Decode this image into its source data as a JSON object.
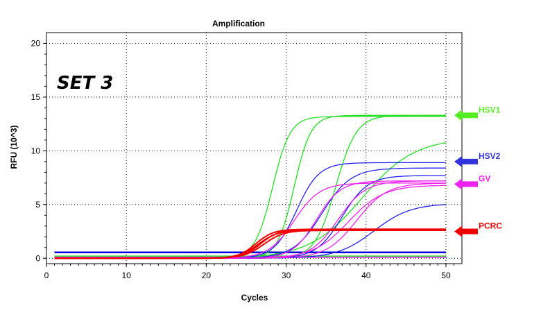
{
  "chart_data": {
    "type": "line",
    "title": "Amplification",
    "xlabel": "Cycles",
    "ylabel": "RFU (10^3)",
    "annotation": "SET 3",
    "xlim": [
      0,
      52
    ],
    "ylim": [
      -0.5,
      21
    ],
    "xticks": [
      0,
      10,
      20,
      30,
      40,
      50
    ],
    "yticks": [
      0,
      5,
      10,
      15,
      20
    ],
    "grid": true,
    "legend_position": "right",
    "groups": [
      {
        "name": "HSV1",
        "color": "#22dd22",
        "curves": [
          {
            "plateau": 13.2,
            "midpoint": 28.3,
            "slope": 1.1
          },
          {
            "plateau": 13.3,
            "midpoint": 31.0,
            "slope": 1.05
          },
          {
            "plateau": 13.3,
            "midpoint": 36.2,
            "slope": 1.3
          },
          {
            "plateau": 11.2,
            "midpoint": 39.5,
            "slope": 3.3
          }
        ]
      },
      {
        "name": "HSV2",
        "color": "#2222ee",
        "curves": [
          {
            "plateau": 8.9,
            "midpoint": 31.3,
            "slope": 1.4
          },
          {
            "plateau": 8.4,
            "midpoint": 34.5,
            "slope": 1.8
          },
          {
            "plateau": 7.7,
            "midpoint": 37.0,
            "slope": 1.6
          },
          {
            "plateau": 5.1,
            "midpoint": 41.0,
            "slope": 2.3
          }
        ]
      },
      {
        "name": "GV",
        "color": "#ee22ee",
        "curves": [
          {
            "plateau": 7.0,
            "midpoint": 31.0,
            "slope": 1.6
          },
          {
            "plateau": 7.2,
            "midpoint": 33.8,
            "slope": 1.5
          },
          {
            "plateau": 7.2,
            "midpoint": 36.5,
            "slope": 1.7
          },
          {
            "plateau": 7.0,
            "midpoint": 38.8,
            "slope": 1.9
          },
          {
            "plateau": 6.8,
            "midpoint": 37.8,
            "slope": 2.2
          }
        ]
      },
      {
        "name": "PCRC",
        "color": "#ee0000",
        "curves": [
          {
            "plateau": 2.6,
            "midpoint": 26.5,
            "slope": 1.2
          },
          {
            "plateau": 2.7,
            "midpoint": 26.8,
            "slope": 1.15
          },
          {
            "plateau": 2.6,
            "midpoint": 27.2,
            "slope": 1.25
          },
          {
            "plateau": 2.7,
            "midpoint": 26.2,
            "slope": 1.1
          }
        ]
      }
    ],
    "baselines": [
      {
        "color": "#0000dd",
        "value": 0.55
      },
      {
        "color": "#22cc22",
        "value": 0.2
      },
      {
        "color": "#ee22ee",
        "value": 0.1
      }
    ],
    "legend": [
      {
        "label": "HSV1",
        "color": "#55ee22",
        "arrow_value": 13.3
      },
      {
        "label": "HSV2",
        "color": "#3333dd",
        "arrow_value": 9.0
      },
      {
        "label": "GV",
        "color": "#ee22ee",
        "arrow_value": 6.9
      },
      {
        "label": "PCRC",
        "color": "#ee0000",
        "arrow_value": 2.5
      }
    ]
  }
}
